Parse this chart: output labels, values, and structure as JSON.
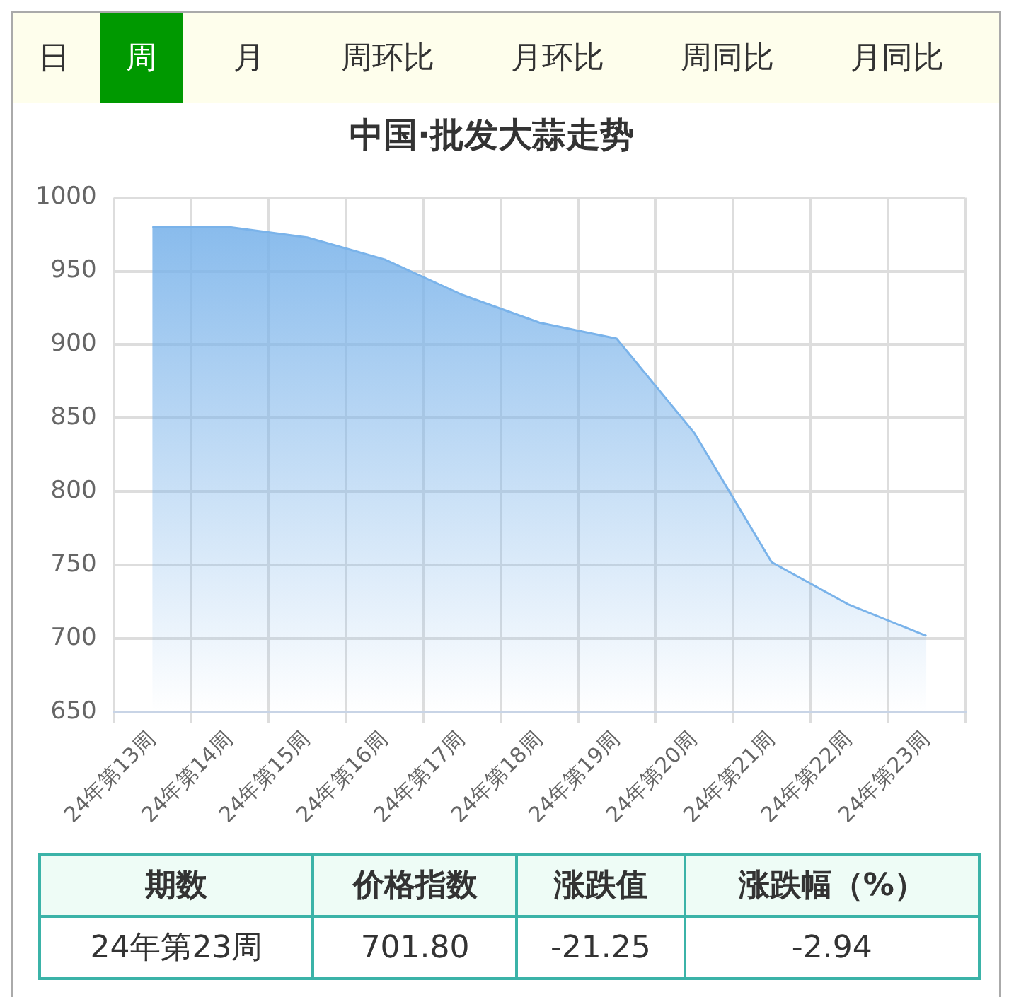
{
  "chart_data": {
    "type": "area",
    "title": "中国·批发大蒜走势",
    "categories": [
      "24年第13周",
      "24年第14周",
      "24年第15周",
      "24年第16周",
      "24年第17周",
      "24年第18周",
      "24年第19周",
      "24年第20周",
      "24年第21周",
      "24年第22周",
      "24年第23周"
    ],
    "series": [
      {
        "color": "#7ab3ea",
        "values": [
          980,
          980,
          973,
          958,
          934,
          915,
          904,
          840,
          752,
          723,
          701.8
        ]
      }
    ],
    "ylim": [
      650,
      1000
    ],
    "yticks": [
      650,
      700,
      750,
      800,
      850,
      900,
      950,
      1000
    ],
    "grid": true,
    "legend": false,
    "marker": "none",
    "line_style": "solid",
    "annotations": [
      "日",
      "周",
      "月",
      "周环比",
      "月环比",
      "周同比",
      "月同比",
      "期数",
      "价格指数",
      "涨跌值",
      "涨跌幅（%）",
      "24年第23周",
      "701.80",
      "-21.25",
      "-2.94"
    ]
  }
}
